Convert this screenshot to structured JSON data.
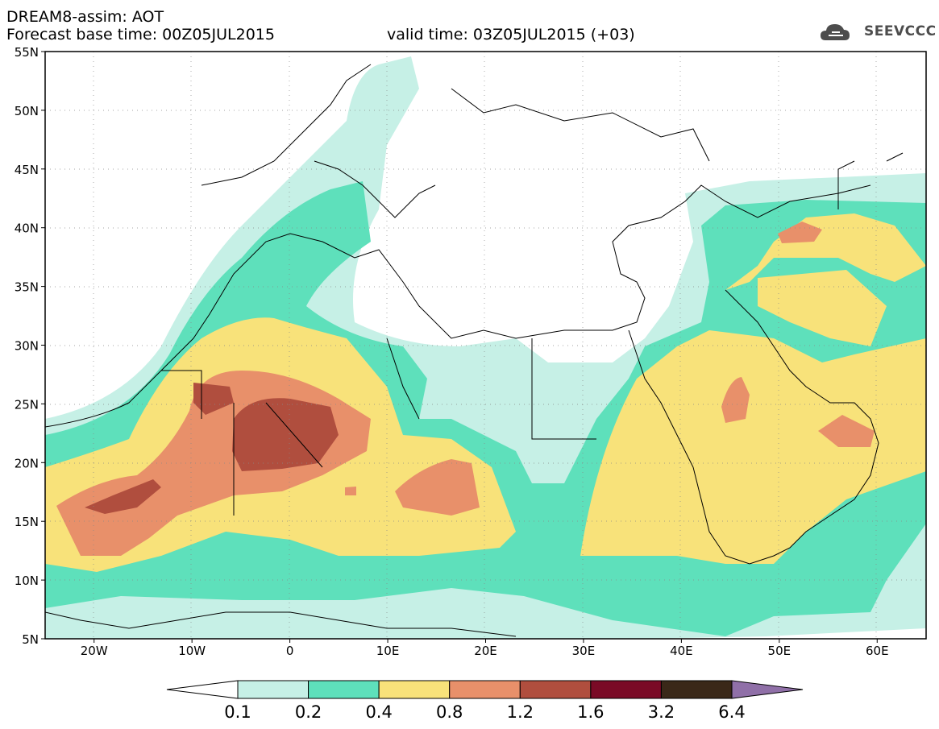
{
  "header": {
    "title": "DREAM8-assim: AOT",
    "base_time": "Forecast base time: 00Z05JUL2015",
    "valid_time": "valid time: 03Z05JUL2015 (+03)"
  },
  "logo": {
    "text": "SEEVCCC",
    "icon": "cloud-icon"
  },
  "map": {
    "lat_ticks": [
      "55N",
      "50N",
      "45N",
      "40N",
      "35N",
      "30N",
      "25N",
      "20N",
      "15N",
      "10N",
      "5N"
    ],
    "lon_ticks": [
      "20W",
      "10W",
      "0",
      "10E",
      "20E",
      "30E",
      "40E",
      "50E",
      "60E"
    ],
    "lon_range": [
      -25,
      65
    ],
    "lat_range": [
      5,
      55
    ]
  },
  "colorbar": {
    "labels": [
      "0.1",
      "0.2",
      "0.4",
      "0.8",
      "1.2",
      "1.6",
      "3.2",
      "6.4"
    ],
    "colors": [
      "#c6f0e6",
      "#5ee0bb",
      "#f8e27a",
      "#e8906a",
      "#b04e3e",
      "#7a0a26",
      "#3a2818",
      "#9070a8"
    ]
  }
}
